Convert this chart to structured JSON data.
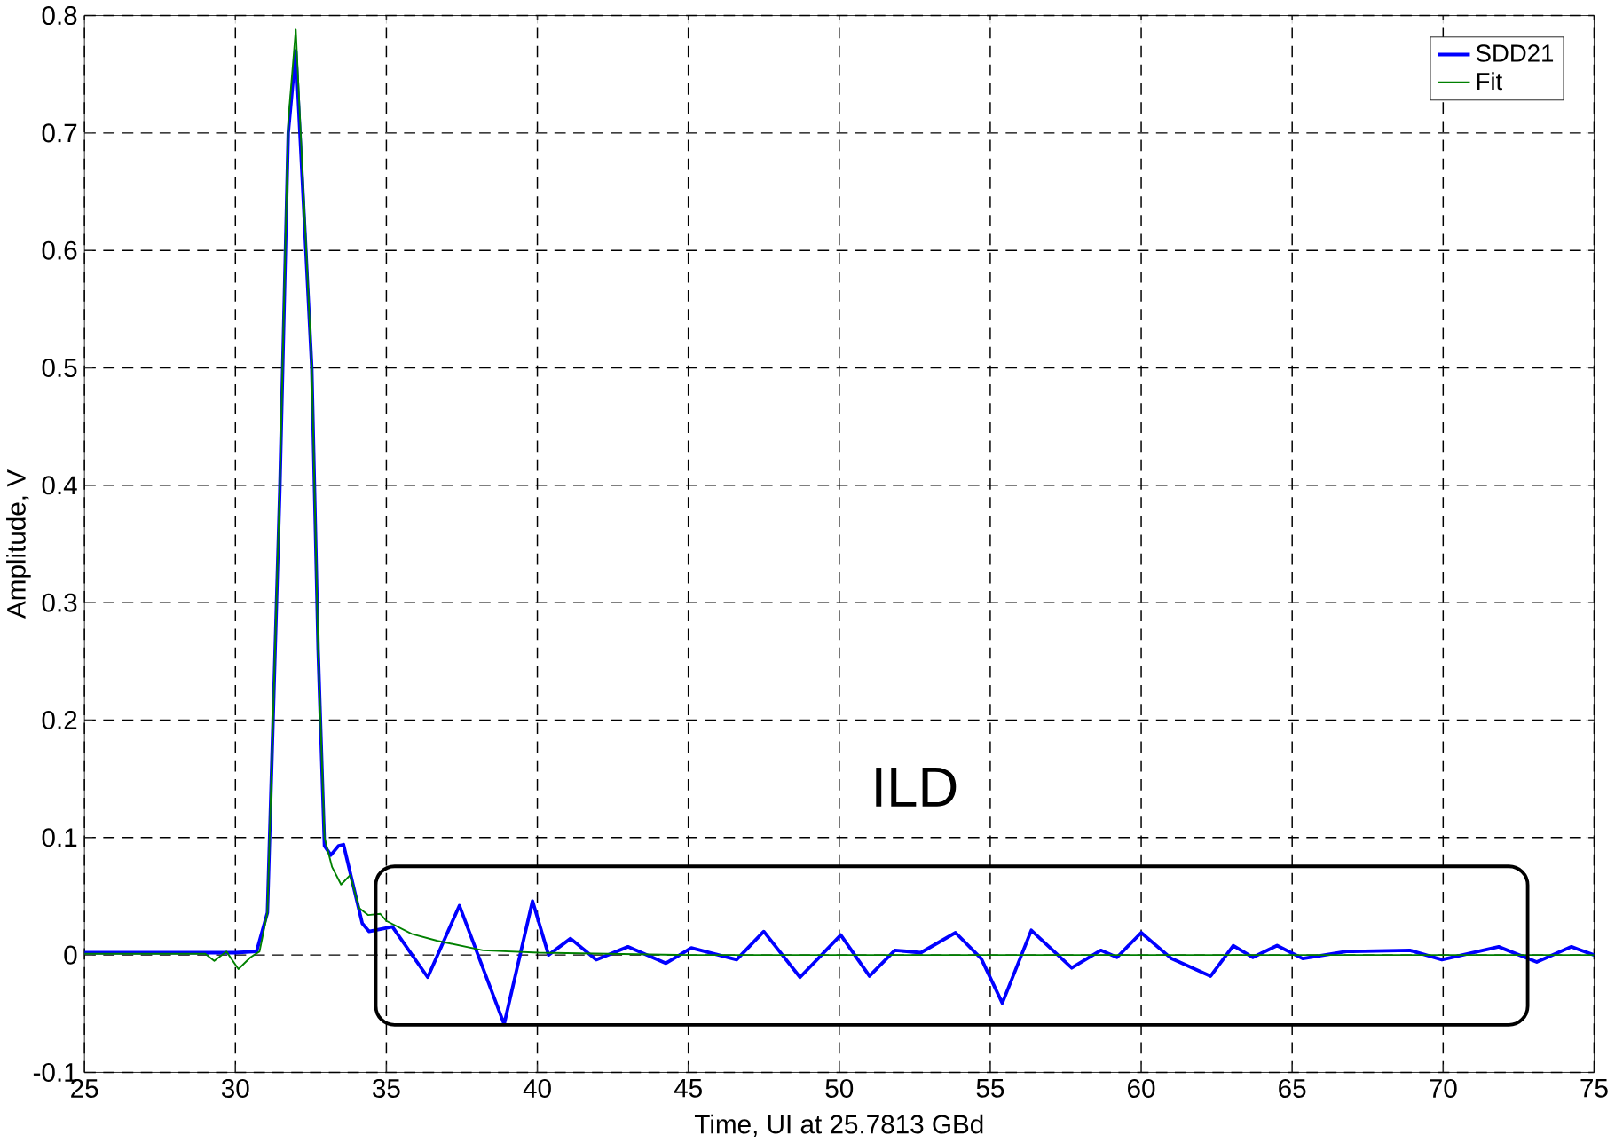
{
  "chart_data": {
    "type": "line",
    "xlabel": "Time, UI at 25.7813 GBd",
    "ylabel": "Amplitude, V",
    "xlim": [
      25,
      75
    ],
    "ylim": [
      -0.1,
      0.8
    ],
    "xticks": [
      25,
      30,
      35,
      40,
      45,
      50,
      55,
      60,
      65,
      70,
      75
    ],
    "yticks": [
      -0.1,
      0,
      0.1,
      0.2,
      0.3,
      0.4,
      0.5,
      0.6,
      0.7,
      0.8
    ],
    "grid": true,
    "legend": "top right",
    "annotations": [
      "ILD"
    ],
    "series": [
      {
        "name": "SDD21",
        "color": "#0000ff",
        "x": [
          25,
          27,
          29,
          30,
          30.7,
          31.06,
          31.47,
          31.75,
          32.0,
          32.53,
          32.74,
          32.95,
          33.16,
          33.42,
          33.58,
          34.2,
          34.43,
          35.2,
          36.37,
          37.42,
          38.9,
          39.84,
          40.37,
          41.1,
          41.95,
          43.0,
          44.26,
          45.1,
          46.6,
          47.5,
          48.7,
          50.05,
          51.0,
          51.84,
          52.7,
          53.85,
          54.7,
          55.4,
          56.36,
          57.7,
          58.66,
          59.2,
          60.0,
          61.0,
          62.3,
          63.05,
          63.7,
          64.5,
          65.35,
          66.8,
          68.9,
          69.96,
          71.84,
          73.1,
          74.25,
          75
        ],
        "values": [
          0.002,
          0.002,
          0.002,
          0.002,
          0.003,
          0.036,
          0.395,
          0.7,
          0.77,
          0.5,
          0.26,
          0.093,
          0.085,
          0.093,
          0.094,
          0.027,
          0.02,
          0.024,
          -0.019,
          0.042,
          -0.059,
          0.046,
          0,
          0.014,
          -0.004,
          0.007,
          -0.007,
          0.006,
          -0.004,
          0.02,
          -0.019,
          0.017,
          -0.018,
          0.004,
          0.002,
          0.019,
          -0.003,
          -0.041,
          0.021,
          -0.011,
          0.004,
          -0.002,
          0.019,
          -0.003,
          -0.018,
          0.008,
          -0.002,
          0.008,
          -0.003,
          0.003,
          0.004,
          -0.004,
          0.007,
          -0.006,
          0.007,
          0
        ]
      },
      {
        "name": "Fit",
        "color": "#008000",
        "x": [
          25,
          27,
          29,
          29.3,
          29.7,
          30.1,
          30.5,
          30.8,
          31.06,
          31.47,
          31.75,
          32.0,
          32.53,
          32.74,
          32.95,
          33.2,
          33.5,
          33.8,
          34.1,
          34.4,
          34.8,
          35.0,
          35.84,
          36.7,
          38.2,
          40.05,
          45,
          50,
          55,
          60,
          65,
          70,
          75
        ],
        "values": [
          0.001,
          0.001,
          0.001,
          -0.005,
          0.003,
          -0.012,
          -0.002,
          0.003,
          0.036,
          0.4,
          0.71,
          0.788,
          0.5,
          0.26,
          0.1,
          0.075,
          0.06,
          0.068,
          0.04,
          0.034,
          0.035,
          0.029,
          0.018,
          0.012,
          0.004,
          0.002,
          0,
          0,
          0,
          0,
          0,
          0,
          0
        ]
      }
    ]
  }
}
